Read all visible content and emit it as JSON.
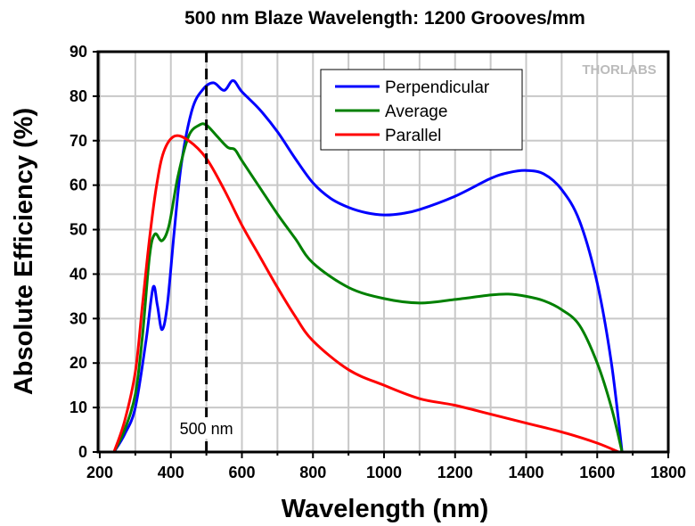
{
  "chart_data": {
    "type": "line",
    "title": "500 nm Blaze Wavelength: 1200 Grooves/mm",
    "xlabel": "Wavelength (nm)",
    "ylabel": "Absolute Efficiency (%)",
    "xlim": [
      200,
      1800
    ],
    "ylim": [
      0,
      90
    ],
    "xticks": [
      200,
      400,
      600,
      800,
      1000,
      1200,
      1400,
      1600,
      1800
    ],
    "yticks": [
      0,
      10,
      20,
      30,
      40,
      50,
      60,
      70,
      80,
      90
    ],
    "grid": true,
    "legend_position": "top-center",
    "watermark": "THORLABS",
    "annotation": {
      "x": 500,
      "label": "500 nm",
      "style": "dashed vertical line"
    },
    "series": [
      {
        "name": "Perpendicular",
        "color": "#0000ff",
        "x": [
          240,
          270,
          300,
          330,
          350,
          362,
          375,
          390,
          410,
          430,
          460,
          490,
          520,
          550,
          575,
          600,
          650,
          700,
          750,
          800,
          850,
          900,
          950,
          1000,
          1050,
          1100,
          1200,
          1300,
          1350,
          1400,
          1450,
          1500,
          1550,
          1600,
          1640,
          1670
        ],
        "y": [
          0,
          4,
          10,
          25,
          37,
          33,
          27.5,
          33,
          50,
          65,
          77,
          81.5,
          83,
          81.3,
          83.5,
          81,
          77,
          72,
          66,
          60.5,
          57,
          55,
          53.8,
          53.3,
          53.6,
          54.5,
          57.5,
          61.5,
          62.8,
          63.3,
          62.5,
          59,
          52,
          38,
          20,
          0
        ]
      },
      {
        "name": "Average",
        "color": "#008000",
        "x": [
          240,
          270,
          300,
          320,
          340,
          355,
          375,
          395,
          420,
          450,
          480,
          500,
          530,
          560,
          580,
          600,
          650,
          700,
          750,
          800,
          900,
          1000,
          1100,
          1200,
          1300,
          1350,
          1400,
          1450,
          1500,
          1550,
          1600,
          1640,
          1670
        ],
        "y": [
          0,
          5,
          13,
          26,
          44,
          49,
          47.5,
          51,
          62,
          71,
          73.5,
          73.5,
          71,
          68.5,
          68,
          65.5,
          59.5,
          53.5,
          48,
          42.5,
          37,
          34.5,
          33.5,
          34.3,
          35.3,
          35.5,
          35,
          34,
          32,
          28.5,
          20,
          10,
          0
        ]
      },
      {
        "name": "Parallel",
        "color": "#ff0000",
        "x": [
          240,
          270,
          300,
          320,
          340,
          360,
          380,
          410,
          450,
          500,
          550,
          600,
          650,
          700,
          750,
          800,
          900,
          1000,
          1100,
          1200,
          1300,
          1400,
          1500,
          1600,
          1660
        ],
        "y": [
          0,
          7,
          18,
          33,
          48,
          60,
          67.5,
          71,
          70,
          66,
          59,
          51,
          44,
          37,
          30.5,
          25,
          18.5,
          15,
          12,
          10.5,
          8.5,
          6.5,
          4.5,
          2,
          0
        ]
      }
    ]
  }
}
